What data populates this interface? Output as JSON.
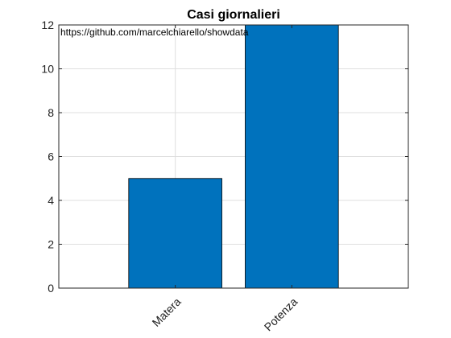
{
  "chart_data": {
    "type": "bar",
    "title": "Casi giornalieri",
    "categories": [
      "Matera",
      "Potenza"
    ],
    "values": [
      5,
      12
    ],
    "ylim": [
      0,
      12
    ],
    "yticks": [
      0,
      2,
      4,
      6,
      8,
      10,
      12
    ],
    "xlim": [
      0,
      3
    ],
    "grid": true,
    "bar_color": "#0072BD",
    "bar_edge_color": "#000000",
    "annotation": "https://github.com/marcelchiarello/showdata"
  }
}
